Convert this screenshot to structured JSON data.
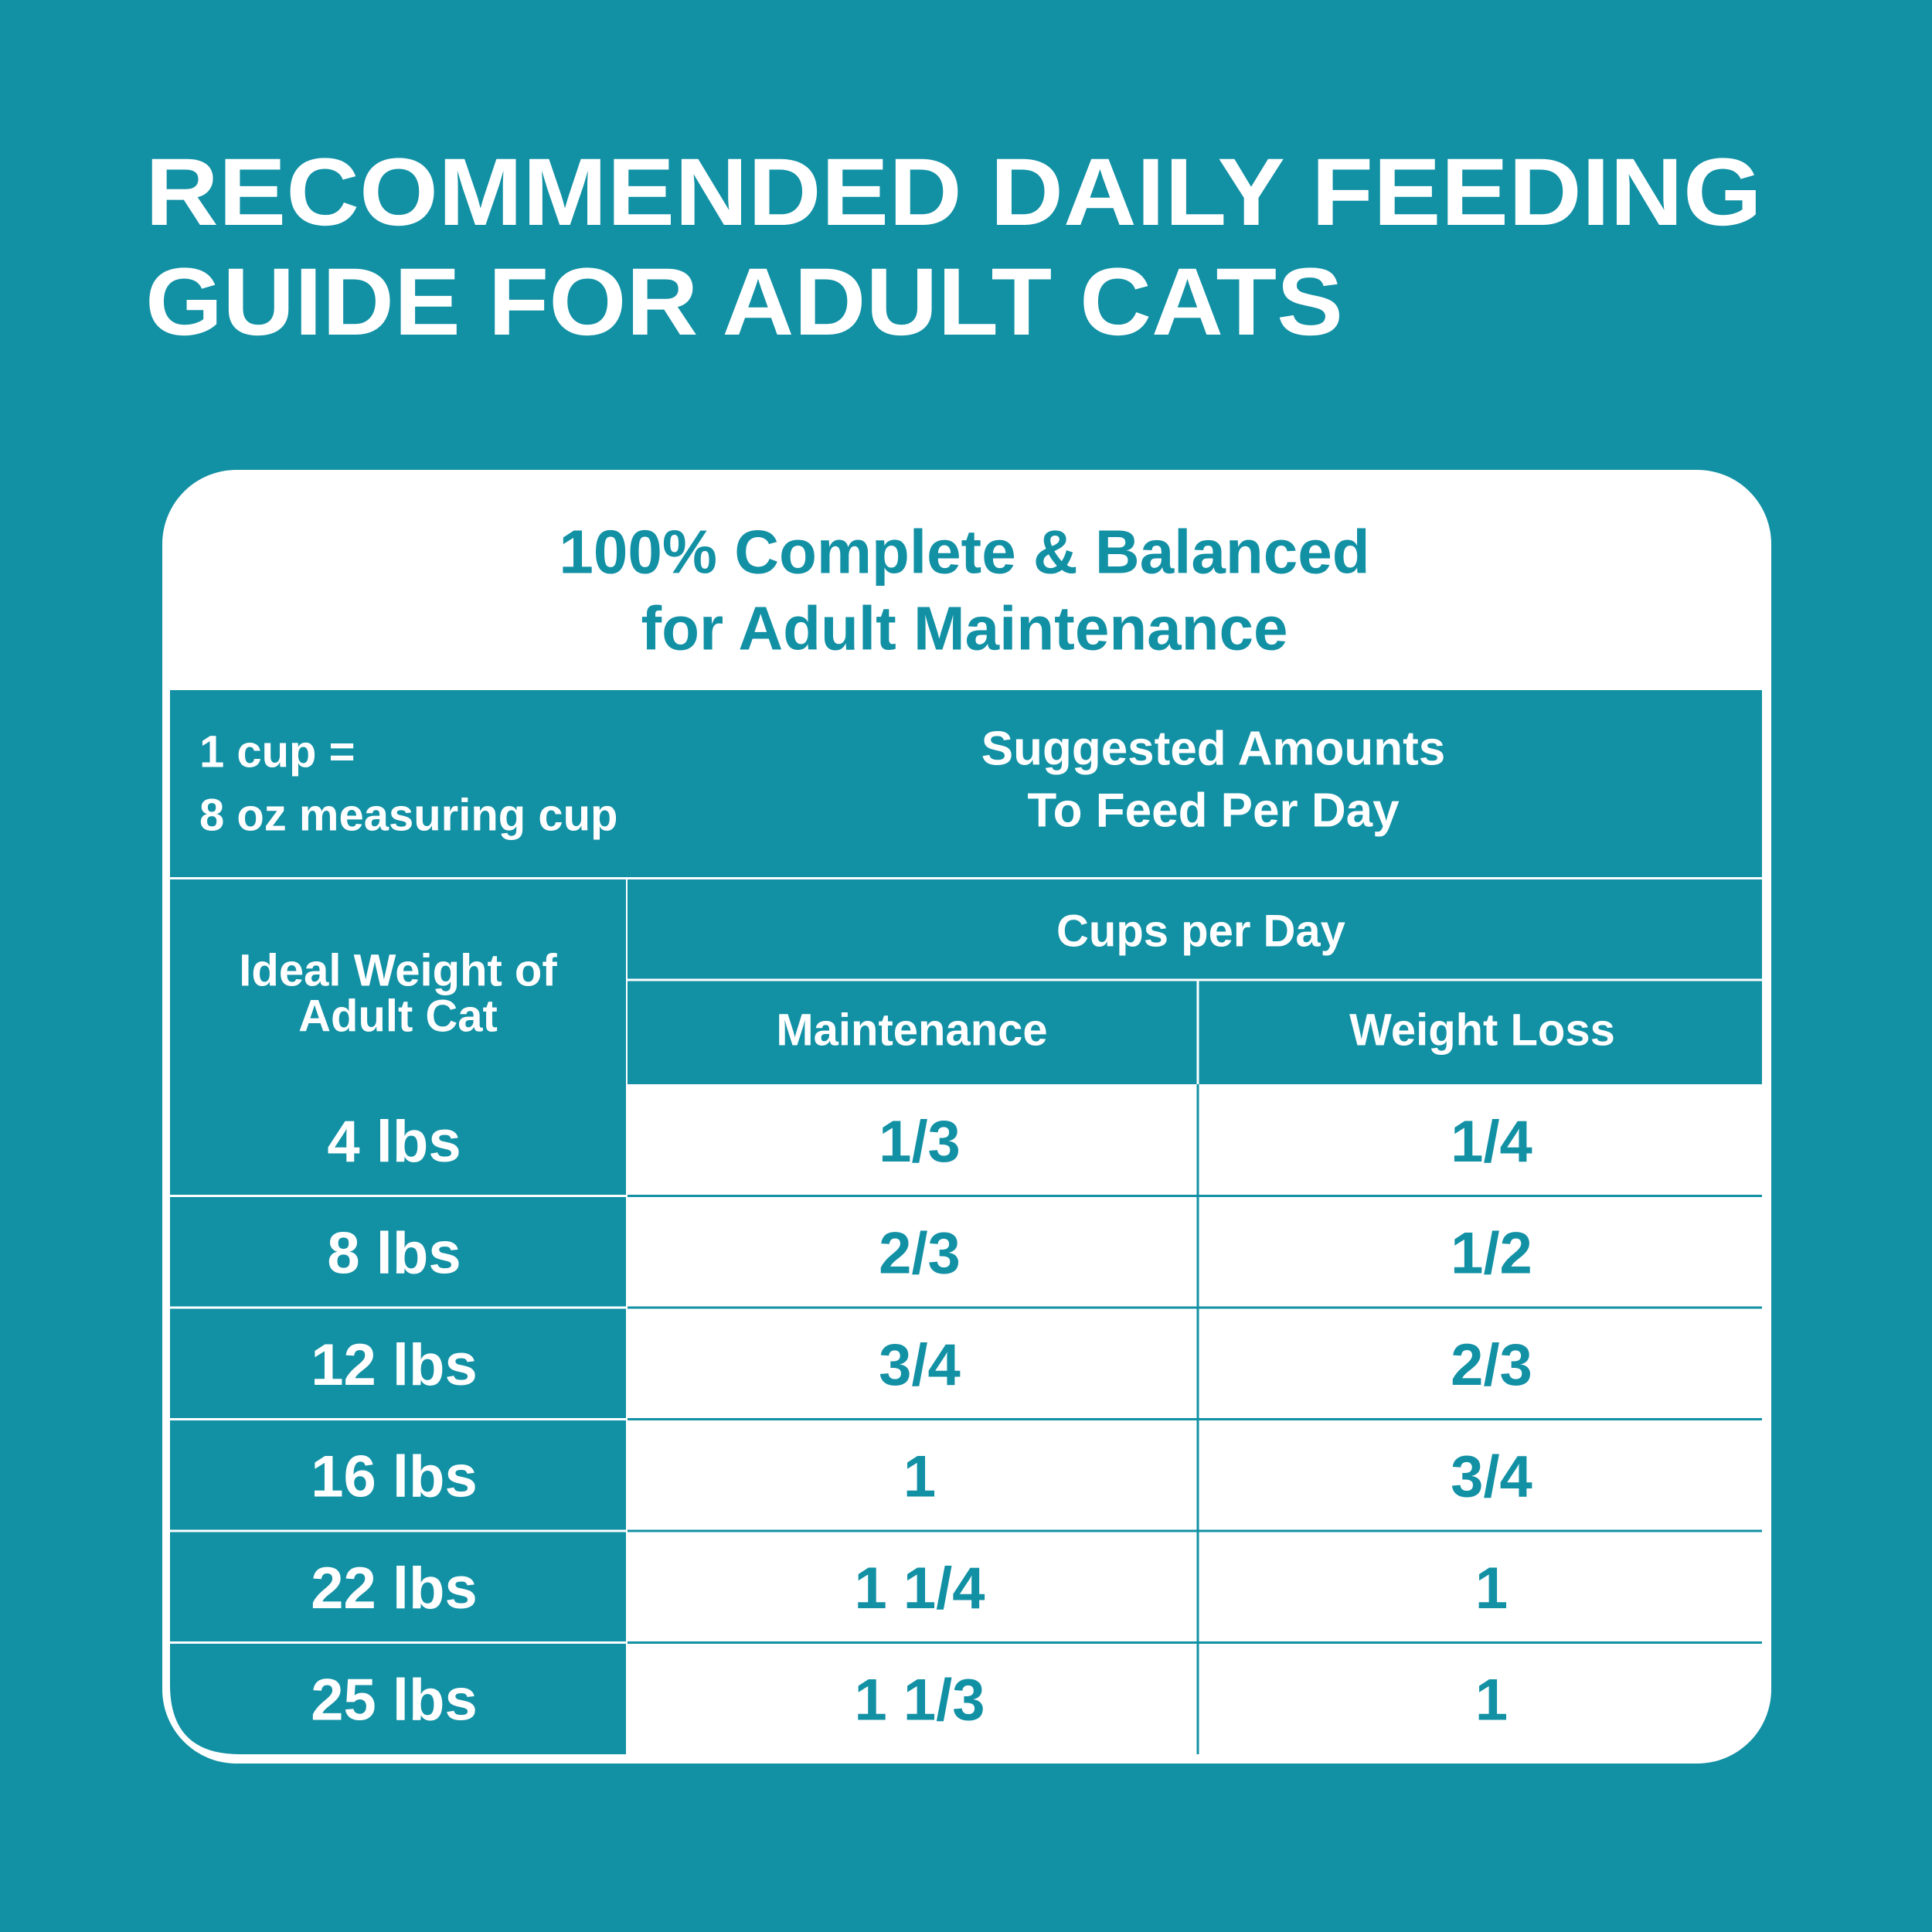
{
  "title": [
    "RECOMMENDED DAILY FEEDING",
    "GUIDE FOR ADULT CATS"
  ],
  "subtitle": [
    "100% Complete & Balanced",
    "for Adult Maintenance"
  ],
  "header": {
    "note": [
      "1 cup =",
      "8 oz measuring cup"
    ],
    "amounts": [
      "Suggested Amounts",
      "To Feed Per Day"
    ],
    "weight": [
      "Ideal Weight of",
      "Adult Cat"
    ],
    "cups": "Cups per Day",
    "columns": [
      "Maintenance",
      "Weight Loss"
    ]
  },
  "table": {
    "rows": [
      [
        "4 lbs",
        "1/3",
        "1/4"
      ],
      [
        "8 lbs",
        "2/3",
        "1/2"
      ],
      [
        "12 lbs",
        "3/4",
        "2/3"
      ],
      [
        "16 lbs",
        "1",
        "3/4"
      ],
      [
        "22 lbs",
        "1 1/4",
        "1"
      ],
      [
        "25 lbs",
        "1 1/3",
        "1"
      ]
    ]
  }
}
